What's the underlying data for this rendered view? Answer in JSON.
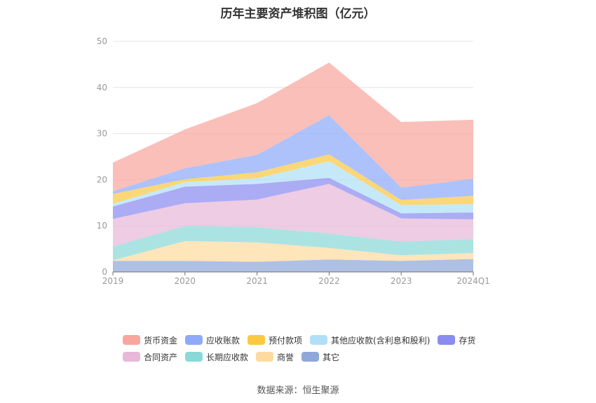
{
  "chart_data": {
    "type": "area",
    "stacked": true,
    "title": "历年主要资产堆积图（亿元）",
    "categories": [
      "2019",
      "2020",
      "2021",
      "2022",
      "2023",
      "2024Q1"
    ],
    "ylim": [
      0,
      50
    ],
    "yticks": [
      0,
      10,
      20,
      30,
      40,
      50
    ],
    "grid": true,
    "legend_position": "bottom",
    "series": [
      {
        "name": "其它",
        "color": "#8fa8d8",
        "values": [
          2.4,
          2.4,
          2.2,
          2.7,
          2.4,
          2.8
        ]
      },
      {
        "name": "商誉",
        "color": "#fddba0",
        "values": [
          0.1,
          4.3,
          4.2,
          2.5,
          1.2,
          1.3
        ]
      },
      {
        "name": "长期应收款",
        "color": "#8ad8d8",
        "values": [
          3.0,
          3.3,
          3.3,
          3.1,
          3.0,
          3.0
        ]
      },
      {
        "name": "合同资产",
        "color": "#e8b8d8",
        "values": [
          6.0,
          4.9,
          6.0,
          10.8,
          5.0,
          4.3
        ]
      },
      {
        "name": "存货",
        "color": "#8b8cf0",
        "values": [
          2.7,
          3.6,
          3.4,
          1.3,
          1.1,
          1.5
        ]
      },
      {
        "name": "其他应收款(含利息和股利)",
        "color": "#b0e0f8",
        "values": [
          0.6,
          1.0,
          1.2,
          3.6,
          1.8,
          1.8
        ]
      },
      {
        "name": "预付款项",
        "color": "#fbc842",
        "values": [
          2.1,
          0.6,
          1.3,
          1.5,
          1.1,
          1.8
        ]
      },
      {
        "name": "应收账款",
        "color": "#8eaaf8",
        "values": [
          0.6,
          2.4,
          3.8,
          8.5,
          2.7,
          3.7
        ]
      },
      {
        "name": "货币资金",
        "color": "#f8a69e",
        "values": [
          6.2,
          8.4,
          11.2,
          11.4,
          14.2,
          12.8
        ]
      }
    ]
  },
  "legend": {
    "row1": [
      "货币资金",
      "应收账款",
      "预付款项",
      "其他应收款(含利息和股利)",
      "存货"
    ],
    "row2": [
      "合同资产",
      "长期应收款",
      "商誉",
      "其它"
    ]
  },
  "source": "数据来源：恒生聚源"
}
